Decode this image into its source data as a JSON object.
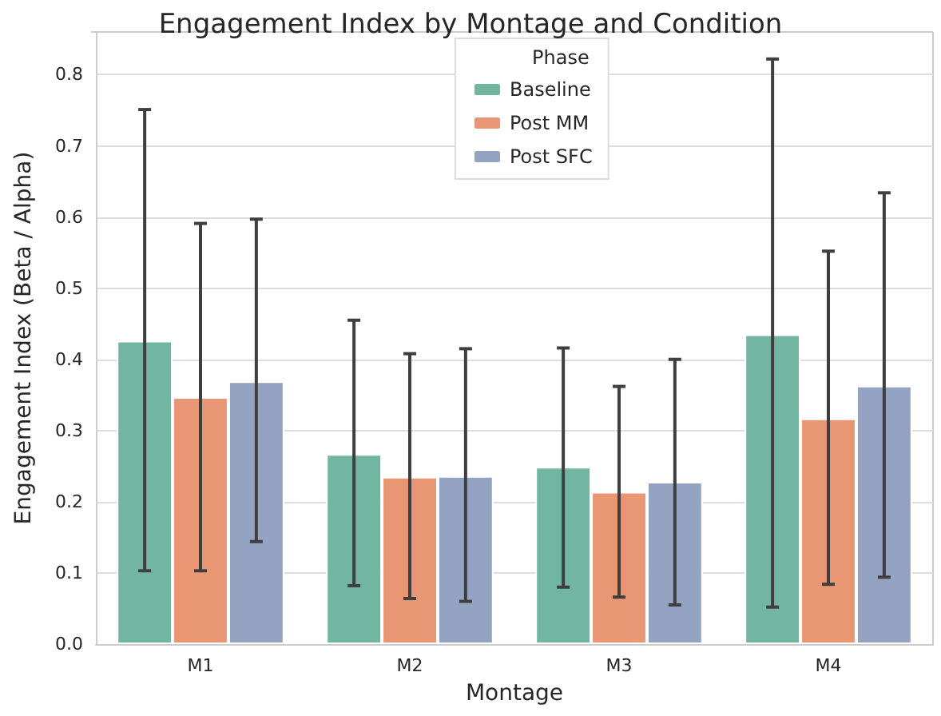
{
  "chart_data": {
    "type": "bar",
    "title": "Engagement Index by Montage and Condition",
    "xlabel": "Montage",
    "ylabel": "Engagement Index (Beta / Alpha)",
    "legend_title": "Phase",
    "categories": [
      "M1",
      "M2",
      "M3",
      "M4"
    ],
    "series": [
      {
        "name": "Baseline",
        "color": "#72b6a1",
        "values": [
          0.426,
          0.267,
          0.249,
          0.435
        ],
        "errors": [
          [
            0.103,
            0.751
          ],
          [
            0.082,
            0.455
          ],
          [
            0.08,
            0.416
          ],
          [
            0.052,
            0.822
          ]
        ]
      },
      {
        "name": "Post MM",
        "color": "#e99675",
        "values": [
          0.347,
          0.235,
          0.214,
          0.317
        ],
        "errors": [
          [
            0.103,
            0.591
          ],
          [
            0.064,
            0.408
          ],
          [
            0.066,
            0.362
          ],
          [
            0.084,
            0.552
          ]
        ]
      },
      {
        "name": "Post SFC",
        "color": "#95a3c3",
        "values": [
          0.369,
          0.236,
          0.228,
          0.363
        ],
        "errors": [
          [
            0.144,
            0.597
          ],
          [
            0.06,
            0.415
          ],
          [
            0.055,
            0.4
          ],
          [
            0.094,
            0.634
          ]
        ]
      }
    ],
    "ylim": [
      0,
      0.86
    ],
    "yticks": [
      {
        "value": 0,
        "label": "0.0"
      },
      0.1,
      0.2,
      0.3,
      0.4,
      0.5,
      0.6,
      0.7,
      0.8
    ],
    "grid": "y",
    "legend": "top"
  }
}
